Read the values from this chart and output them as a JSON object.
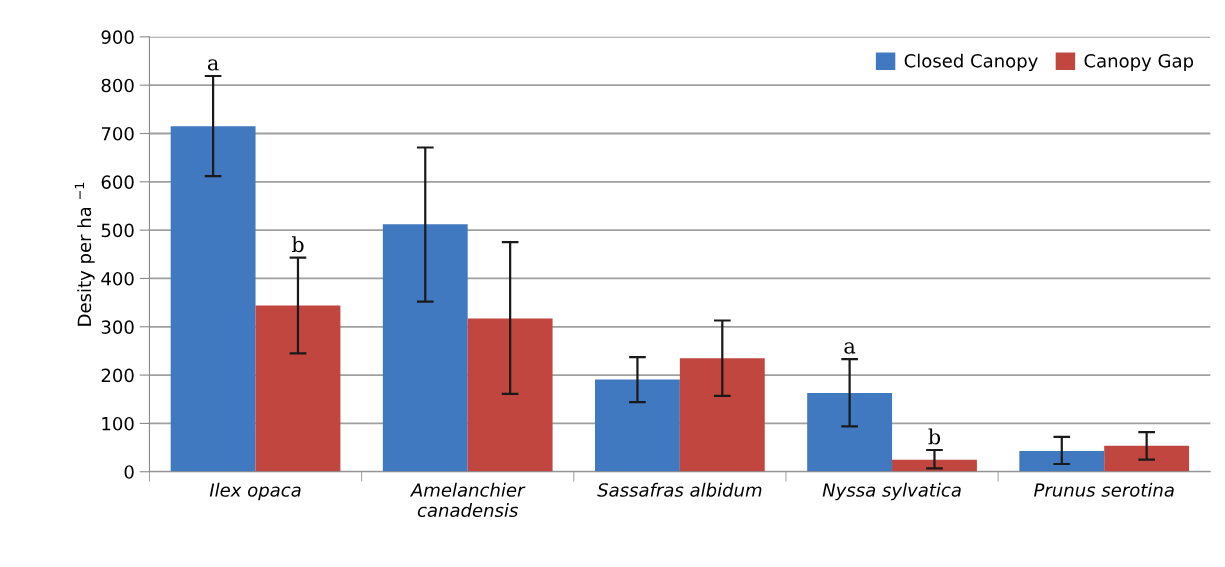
{
  "chart_data": {
    "type": "bar",
    "ylabel": "Desity per ha $^{−1}$",
    "categories": [
      "Ilex opaca",
      "Amelanchier\ncanadensis",
      "Sassafras albidum",
      "Nyssa sylvatica",
      "Prunus serotina"
    ],
    "series": [
      {
        "name": "Closed Canopy",
        "color": "#4079bf",
        "values": [
          715,
          512,
          191,
          163,
          43
        ],
        "errors": [
          [
            612,
            819
          ],
          [
            352,
            671
          ],
          [
            144,
            237
          ],
          [
            94,
            233
          ],
          [
            16,
            72
          ]
        ]
      },
      {
        "name": "Canopy Gap",
        "color": "#c0463f",
        "values": [
          344,
          317,
          235,
          25,
          54
        ],
        "errors": [
          [
            245,
            443
          ],
          [
            161,
            475
          ],
          [
            157,
            313
          ],
          [
            7,
            45
          ],
          [
            25,
            82
          ]
        ]
      }
    ],
    "annotations": [
      "a",
      "b",
      "a",
      "b"
    ],
    "ylim": [
      0,
      900
    ],
    "yticks": [
      0,
      100,
      200,
      300,
      400,
      500,
      600,
      700,
      800,
      900
    ],
    "grid": "y",
    "legend": "top right"
  }
}
